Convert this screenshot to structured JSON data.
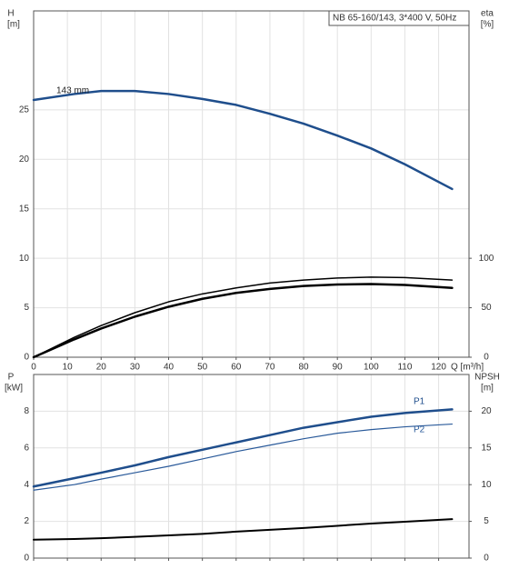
{
  "chart_data": [
    {
      "type": "line",
      "title": "NB 65-160/143, 3*400 V, 50Hz",
      "ylabel": "H",
      "yunit": "[m]",
      "y2label": "eta",
      "y2unit": "[%]",
      "xlabel": "Q [m³/h]",
      "x": [
        0,
        12,
        20,
        30,
        40,
        50,
        60,
        70,
        80,
        90,
        100,
        110,
        124
      ],
      "xlim": [
        0,
        129
      ],
      "xticks": [
        0,
        10,
        20,
        30,
        40,
        50,
        60,
        70,
        80,
        90,
        100,
        110,
        120
      ],
      "ylim": [
        0,
        35
      ],
      "yticks": [
        0,
        5,
        10,
        15,
        20,
        25
      ],
      "y2lim": [
        0,
        350
      ],
      "y2ticks": [
        0,
        50,
        100
      ],
      "grid": true,
      "series": [
        {
          "name": "143 mm",
          "color": "#1f4e8c",
          "width": 2.5,
          "values": [
            26.0,
            26.6,
            26.9,
            26.9,
            26.6,
            26.1,
            25.5,
            24.6,
            23.6,
            22.4,
            21.1,
            19.5,
            17.0
          ]
        },
        {
          "color": "#000000",
          "width": 1.5,
          "axis": "y2",
          "values": [
            0,
            20,
            32,
            45,
            56,
            64,
            70,
            75,
            78,
            80,
            81,
            80.5,
            78
          ]
        },
        {
          "color": "#000000",
          "width": 2.5,
          "axis": "y2",
          "values": [
            0,
            18,
            29,
            41,
            51,
            59,
            65,
            69,
            72,
            73.5,
            74,
            73,
            70
          ]
        }
      ]
    },
    {
      "type": "line",
      "ylabel": "P",
      "yunit": "[kW]",
      "y2label": "NPSH",
      "y2unit": "[m]",
      "x": [
        0,
        12,
        20,
        30,
        40,
        50,
        60,
        70,
        80,
        90,
        100,
        110,
        124
      ],
      "xlim": [
        0,
        129
      ],
      "xticks": [
        0,
        10,
        20,
        30,
        40,
        50,
        60,
        70,
        80,
        90,
        100,
        110,
        120
      ],
      "show_xtick_labels": false,
      "ylim": [
        0,
        10
      ],
      "yticks": [
        0,
        2,
        4,
        6,
        8
      ],
      "y2lim": [
        0,
        25
      ],
      "y2ticks": [
        0,
        5,
        10,
        15,
        20
      ],
      "grid": true,
      "series": [
        {
          "name": "P1",
          "color": "#1f4e8c",
          "width": 2.5,
          "values": [
            3.9,
            4.35,
            4.65,
            5.05,
            5.5,
            5.9,
            6.3,
            6.7,
            7.1,
            7.4,
            7.7,
            7.9,
            8.1
          ]
        },
        {
          "name": "P2",
          "color": "#2a5a9a",
          "width": 1.2,
          "values": [
            3.7,
            4.0,
            4.3,
            4.65,
            5.0,
            5.4,
            5.8,
            6.15,
            6.5,
            6.8,
            7.0,
            7.15,
            7.3
          ]
        },
        {
          "color": "#000000",
          "width": 2,
          "axis": "y2",
          "values": [
            2.5,
            2.6,
            2.7,
            2.9,
            3.1,
            3.3,
            3.6,
            3.85,
            4.1,
            4.4,
            4.7,
            4.95,
            5.3
          ]
        }
      ]
    }
  ]
}
